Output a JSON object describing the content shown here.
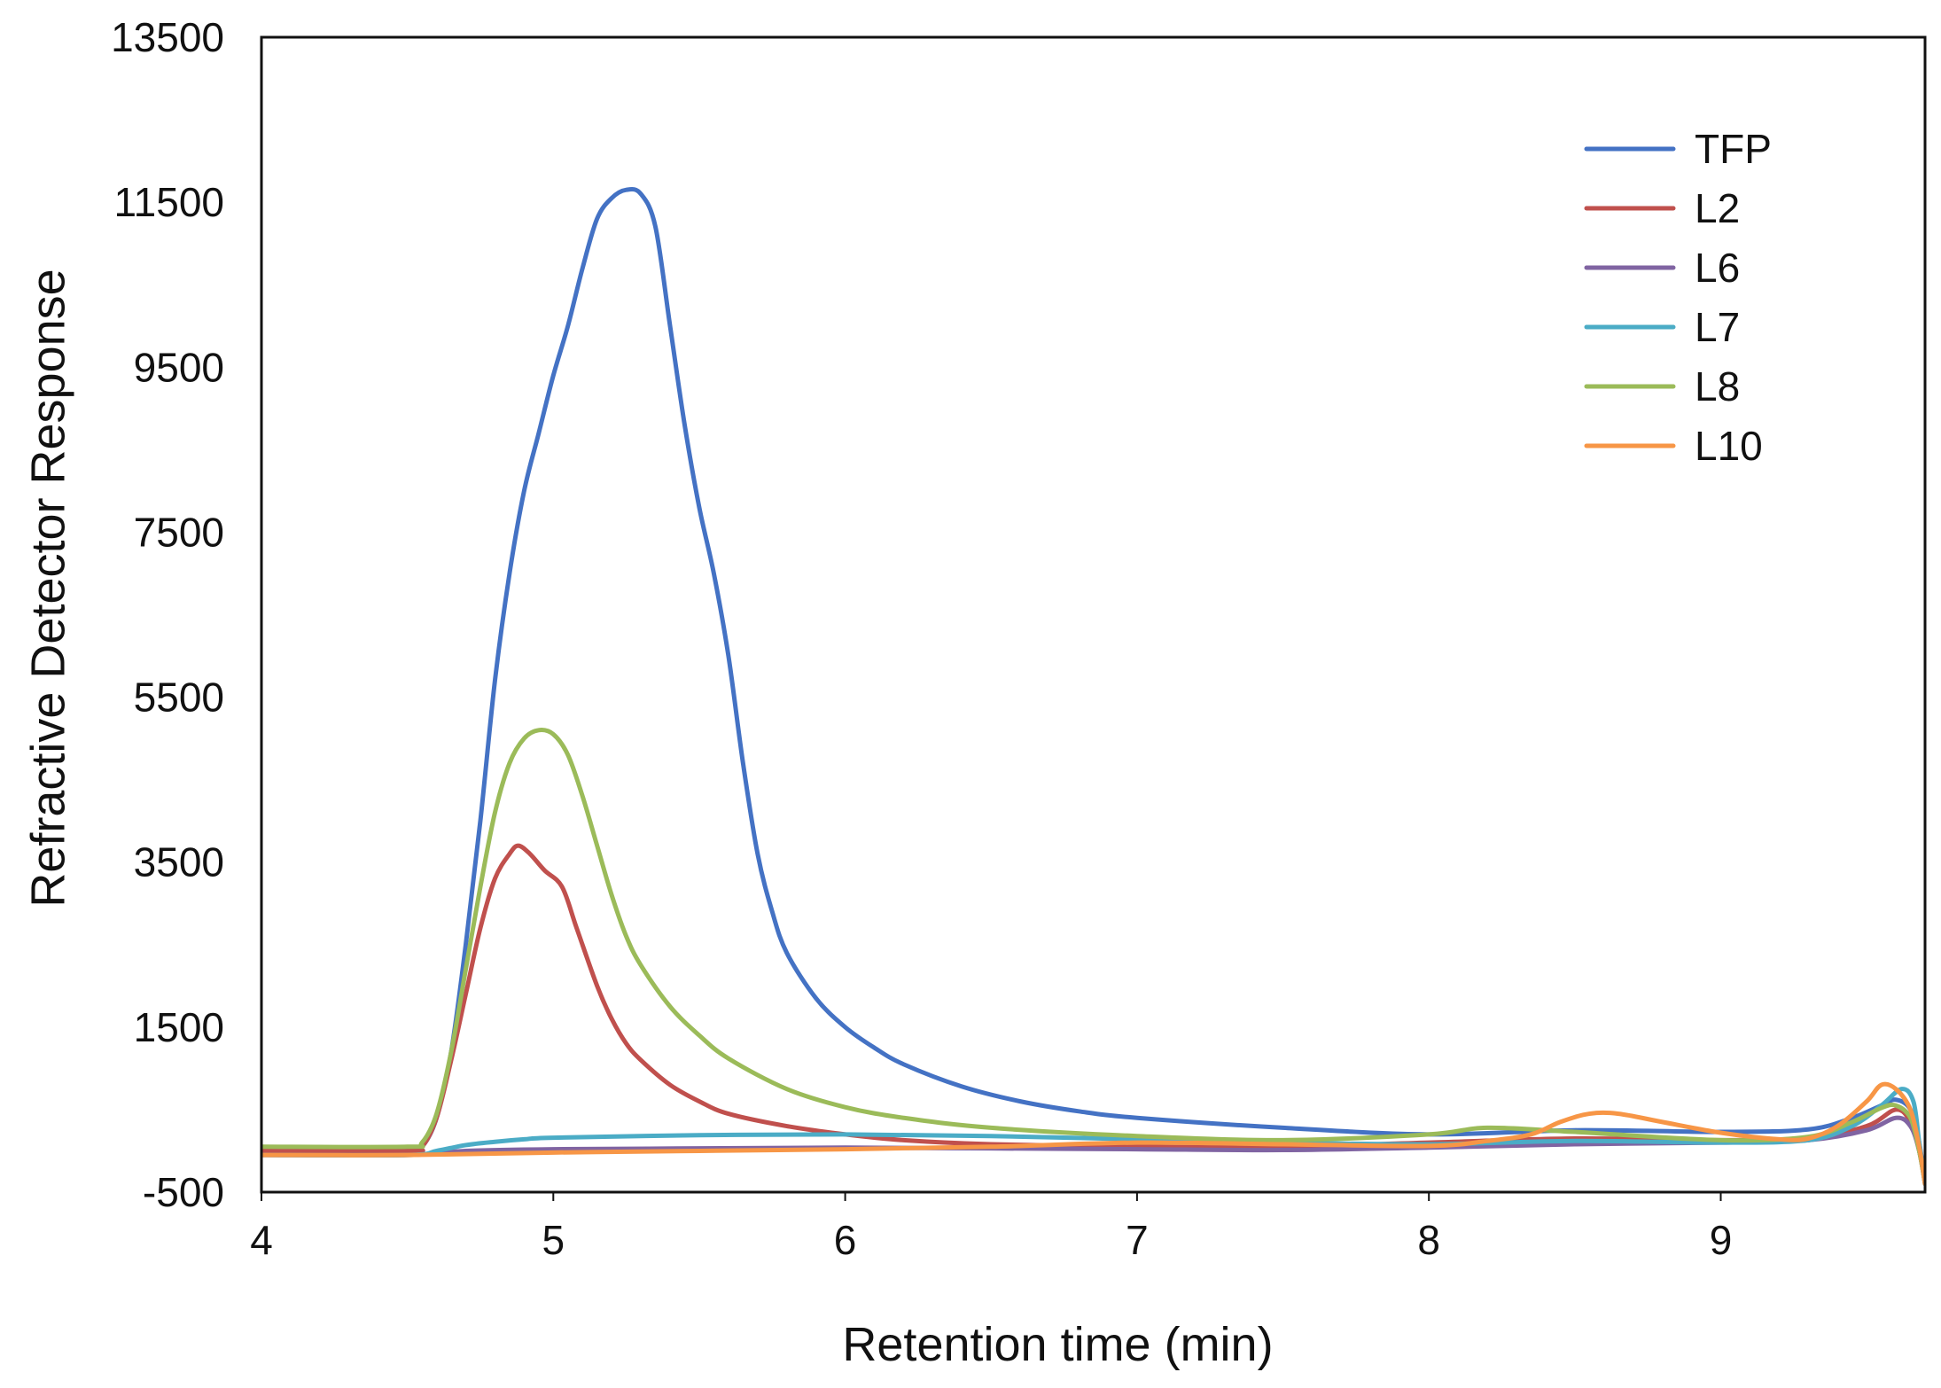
{
  "chart_data": {
    "type": "line",
    "title": "",
    "xlabel": "Retention time (min)",
    "ylabel": "Refractive Detector Response",
    "xlim": [
      4,
      9.7
    ],
    "ylim": [
      -500,
      13500
    ],
    "xticks": [
      4,
      5,
      6,
      7,
      8,
      9
    ],
    "yticks": [
      -500,
      1500,
      3500,
      5500,
      7500,
      9500,
      11500,
      13500
    ],
    "xtick_labels": [
      "4",
      "5",
      "6",
      "7",
      "8",
      "9"
    ],
    "ytick_labels": [
      "-500",
      "1500",
      "3500",
      "5500",
      "7500",
      "9500",
      "11500",
      "13500"
    ],
    "grid": false,
    "legend_position": "top-right",
    "series": [
      {
        "name": "TFP",
        "color": "#4472C4",
        "points": [
          [
            4.0,
            0
          ],
          [
            4.5,
            0
          ],
          [
            4.55,
            50
          ],
          [
            4.6,
            400
          ],
          [
            4.65,
            1200
          ],
          [
            4.7,
            2500
          ],
          [
            4.75,
            4000
          ],
          [
            4.8,
            5700
          ],
          [
            4.85,
            7000
          ],
          [
            4.9,
            8000
          ],
          [
            4.95,
            8700
          ],
          [
            5.0,
            9400
          ],
          [
            5.05,
            10000
          ],
          [
            5.1,
            10700
          ],
          [
            5.15,
            11300
          ],
          [
            5.2,
            11550
          ],
          [
            5.25,
            11650
          ],
          [
            5.3,
            11600
          ],
          [
            5.35,
            11200
          ],
          [
            5.4,
            10000
          ],
          [
            5.45,
            8800
          ],
          [
            5.5,
            7800
          ],
          [
            5.55,
            7000
          ],
          [
            5.6,
            6000
          ],
          [
            5.65,
            4700
          ],
          [
            5.7,
            3600
          ],
          [
            5.75,
            2900
          ],
          [
            5.8,
            2400
          ],
          [
            5.9,
            1850
          ],
          [
            6.0,
            1500
          ],
          [
            6.1,
            1250
          ],
          [
            6.2,
            1050
          ],
          [
            6.4,
            780
          ],
          [
            6.6,
            600
          ],
          [
            6.8,
            480
          ],
          [
            7.0,
            400
          ],
          [
            7.5,
            280
          ],
          [
            8.0,
            200
          ],
          [
            8.5,
            250
          ],
          [
            9.0,
            230
          ],
          [
            9.3,
            260
          ],
          [
            9.45,
            400
          ],
          [
            9.55,
            550
          ],
          [
            9.6,
            620
          ],
          [
            9.65,
            500
          ],
          [
            9.68,
            100
          ],
          [
            9.7,
            -400
          ]
        ]
      },
      {
        "name": "L2",
        "color": "#C0504D",
        "points": [
          [
            4.0,
            0
          ],
          [
            4.5,
            0
          ],
          [
            4.55,
            50
          ],
          [
            4.6,
            400
          ],
          [
            4.65,
            1100
          ],
          [
            4.7,
            1900
          ],
          [
            4.75,
            2700
          ],
          [
            4.8,
            3300
          ],
          [
            4.85,
            3600
          ],
          [
            4.88,
            3700
          ],
          [
            4.92,
            3600
          ],
          [
            4.97,
            3400
          ],
          [
            5.03,
            3200
          ],
          [
            5.08,
            2700
          ],
          [
            5.15,
            2000
          ],
          [
            5.2,
            1600
          ],
          [
            5.25,
            1300
          ],
          [
            5.3,
            1100
          ],
          [
            5.4,
            800
          ],
          [
            5.5,
            600
          ],
          [
            5.6,
            450
          ],
          [
            5.8,
            300
          ],
          [
            6.0,
            200
          ],
          [
            6.2,
            130
          ],
          [
            6.5,
            80
          ],
          [
            7.0,
            50
          ],
          [
            7.5,
            50
          ],
          [
            8.0,
            100
          ],
          [
            8.5,
            150
          ],
          [
            9.0,
            130
          ],
          [
            9.3,
            150
          ],
          [
            9.5,
            300
          ],
          [
            9.6,
            500
          ],
          [
            9.65,
            350
          ],
          [
            9.68,
            0
          ],
          [
            9.7,
            -400
          ]
        ]
      },
      {
        "name": "L6",
        "color": "#8064A2",
        "points": [
          [
            4.0,
            -50
          ],
          [
            4.5,
            -50
          ],
          [
            4.7,
            0
          ],
          [
            5.0,
            20
          ],
          [
            5.5,
            30
          ],
          [
            6.0,
            40
          ],
          [
            6.5,
            30
          ],
          [
            7.0,
            20
          ],
          [
            7.5,
            10
          ],
          [
            8.0,
            40
          ],
          [
            8.5,
            80
          ],
          [
            9.0,
            100
          ],
          [
            9.3,
            130
          ],
          [
            9.5,
            250
          ],
          [
            9.6,
            400
          ],
          [
            9.65,
            300
          ],
          [
            9.68,
            0
          ],
          [
            9.7,
            -400
          ]
        ]
      },
      {
        "name": "L7",
        "color": "#4BACC6",
        "points": [
          [
            4.0,
            -50
          ],
          [
            4.5,
            -50
          ],
          [
            4.6,
            0
          ],
          [
            4.7,
            70
          ],
          [
            4.8,
            110
          ],
          [
            4.9,
            140
          ],
          [
            5.0,
            160
          ],
          [
            5.5,
            190
          ],
          [
            6.0,
            200
          ],
          [
            6.5,
            180
          ],
          [
            7.0,
            140
          ],
          [
            7.5,
            100
          ],
          [
            8.0,
            80
          ],
          [
            8.5,
            120
          ],
          [
            9.0,
            100
          ],
          [
            9.3,
            130
          ],
          [
            9.45,
            300
          ],
          [
            9.55,
            550
          ],
          [
            9.62,
            750
          ],
          [
            9.66,
            600
          ],
          [
            9.68,
            100
          ],
          [
            9.7,
            -400
          ]
        ]
      },
      {
        "name": "L8",
        "color": "#9BBB59",
        "points": [
          [
            4.0,
            50
          ],
          [
            4.5,
            50
          ],
          [
            4.55,
            100
          ],
          [
            4.6,
            450
          ],
          [
            4.65,
            1200
          ],
          [
            4.7,
            2200
          ],
          [
            4.75,
            3200
          ],
          [
            4.8,
            4100
          ],
          [
            4.85,
            4700
          ],
          [
            4.9,
            5000
          ],
          [
            4.95,
            5100
          ],
          [
            5.0,
            5050
          ],
          [
            5.05,
            4800
          ],
          [
            5.1,
            4300
          ],
          [
            5.15,
            3700
          ],
          [
            5.2,
            3100
          ],
          [
            5.25,
            2600
          ],
          [
            5.3,
            2250
          ],
          [
            5.4,
            1750
          ],
          [
            5.5,
            1400
          ],
          [
            5.6,
            1120
          ],
          [
            5.8,
            750
          ],
          [
            6.0,
            530
          ],
          [
            6.2,
            400
          ],
          [
            6.5,
            280
          ],
          [
            7.0,
            180
          ],
          [
            7.5,
            130
          ],
          [
            8.0,
            200
          ],
          [
            8.2,
            280
          ],
          [
            8.5,
            230
          ],
          [
            9.0,
            130
          ],
          [
            9.3,
            170
          ],
          [
            9.45,
            350
          ],
          [
            9.55,
            520
          ],
          [
            9.6,
            550
          ],
          [
            9.65,
            400
          ],
          [
            9.68,
            0
          ],
          [
            9.7,
            -400
          ]
        ]
      },
      {
        "name": "L10",
        "color": "#F79646",
        "points": [
          [
            4.0,
            -50
          ],
          [
            4.5,
            -50
          ],
          [
            5.0,
            -20
          ],
          [
            5.5,
            0
          ],
          [
            6.0,
            20
          ],
          [
            6.5,
            50
          ],
          [
            7.0,
            100
          ],
          [
            7.5,
            80
          ],
          [
            8.0,
            60
          ],
          [
            8.2,
            120
          ],
          [
            8.35,
            200
          ],
          [
            8.45,
            350
          ],
          [
            8.55,
            450
          ],
          [
            8.65,
            450
          ],
          [
            8.8,
            350
          ],
          [
            9.0,
            220
          ],
          [
            9.2,
            140
          ],
          [
            9.3,
            150
          ],
          [
            9.4,
            300
          ],
          [
            9.5,
            600
          ],
          [
            9.55,
            800
          ],
          [
            9.6,
            750
          ],
          [
            9.65,
            500
          ],
          [
            9.68,
            50
          ],
          [
            9.7,
            -400
          ]
        ]
      }
    ]
  }
}
